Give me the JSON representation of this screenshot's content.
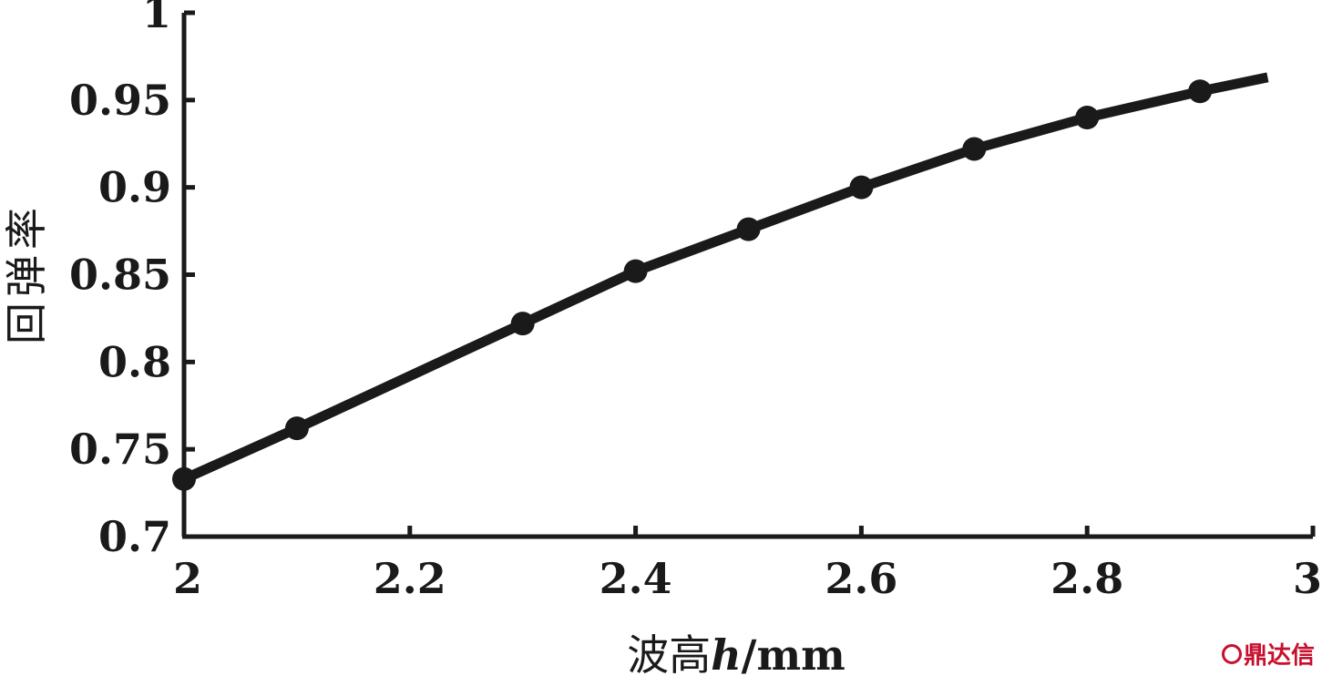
{
  "chart_data": {
    "type": "line",
    "title": "",
    "xlabel_text": "波高",
    "xlabel_var": "h",
    "xlabel_unit": "/mm",
    "ylabel": "回弹率",
    "xlim": [
      2,
      3
    ],
    "ylim": [
      0.7,
      1
    ],
    "xticks": [
      "2",
      "2.2",
      "2.4",
      "2.6",
      "2.8",
      "3"
    ],
    "yticks": [
      "0.7",
      "0.75",
      "0.8",
      "0.85",
      "0.9",
      "0.95",
      "1"
    ],
    "grid": false,
    "legend": "none",
    "series": [
      {
        "markers": {
          "x": [
            2.0,
            2.1,
            2.3,
            2.4,
            2.5,
            2.6,
            2.7,
            2.8,
            2.9
          ],
          "y": [
            0.733,
            0.762,
            0.822,
            0.852,
            0.876,
            0.9,
            0.922,
            0.94,
            0.955
          ]
        },
        "line": {
          "x": [
            2.0,
            2.1,
            2.2,
            2.3,
            2.4,
            2.5,
            2.6,
            2.7,
            2.8,
            2.9,
            2.96
          ],
          "y": [
            0.733,
            0.762,
            0.792,
            0.822,
            0.852,
            0.876,
            0.9,
            0.922,
            0.94,
            0.955,
            0.963
          ]
        }
      }
    ],
    "line_color": "#1a1a1a"
  },
  "watermark": {
    "text": "鼎达信",
    "icon": "logo-icon",
    "color": "#c8102e"
  }
}
